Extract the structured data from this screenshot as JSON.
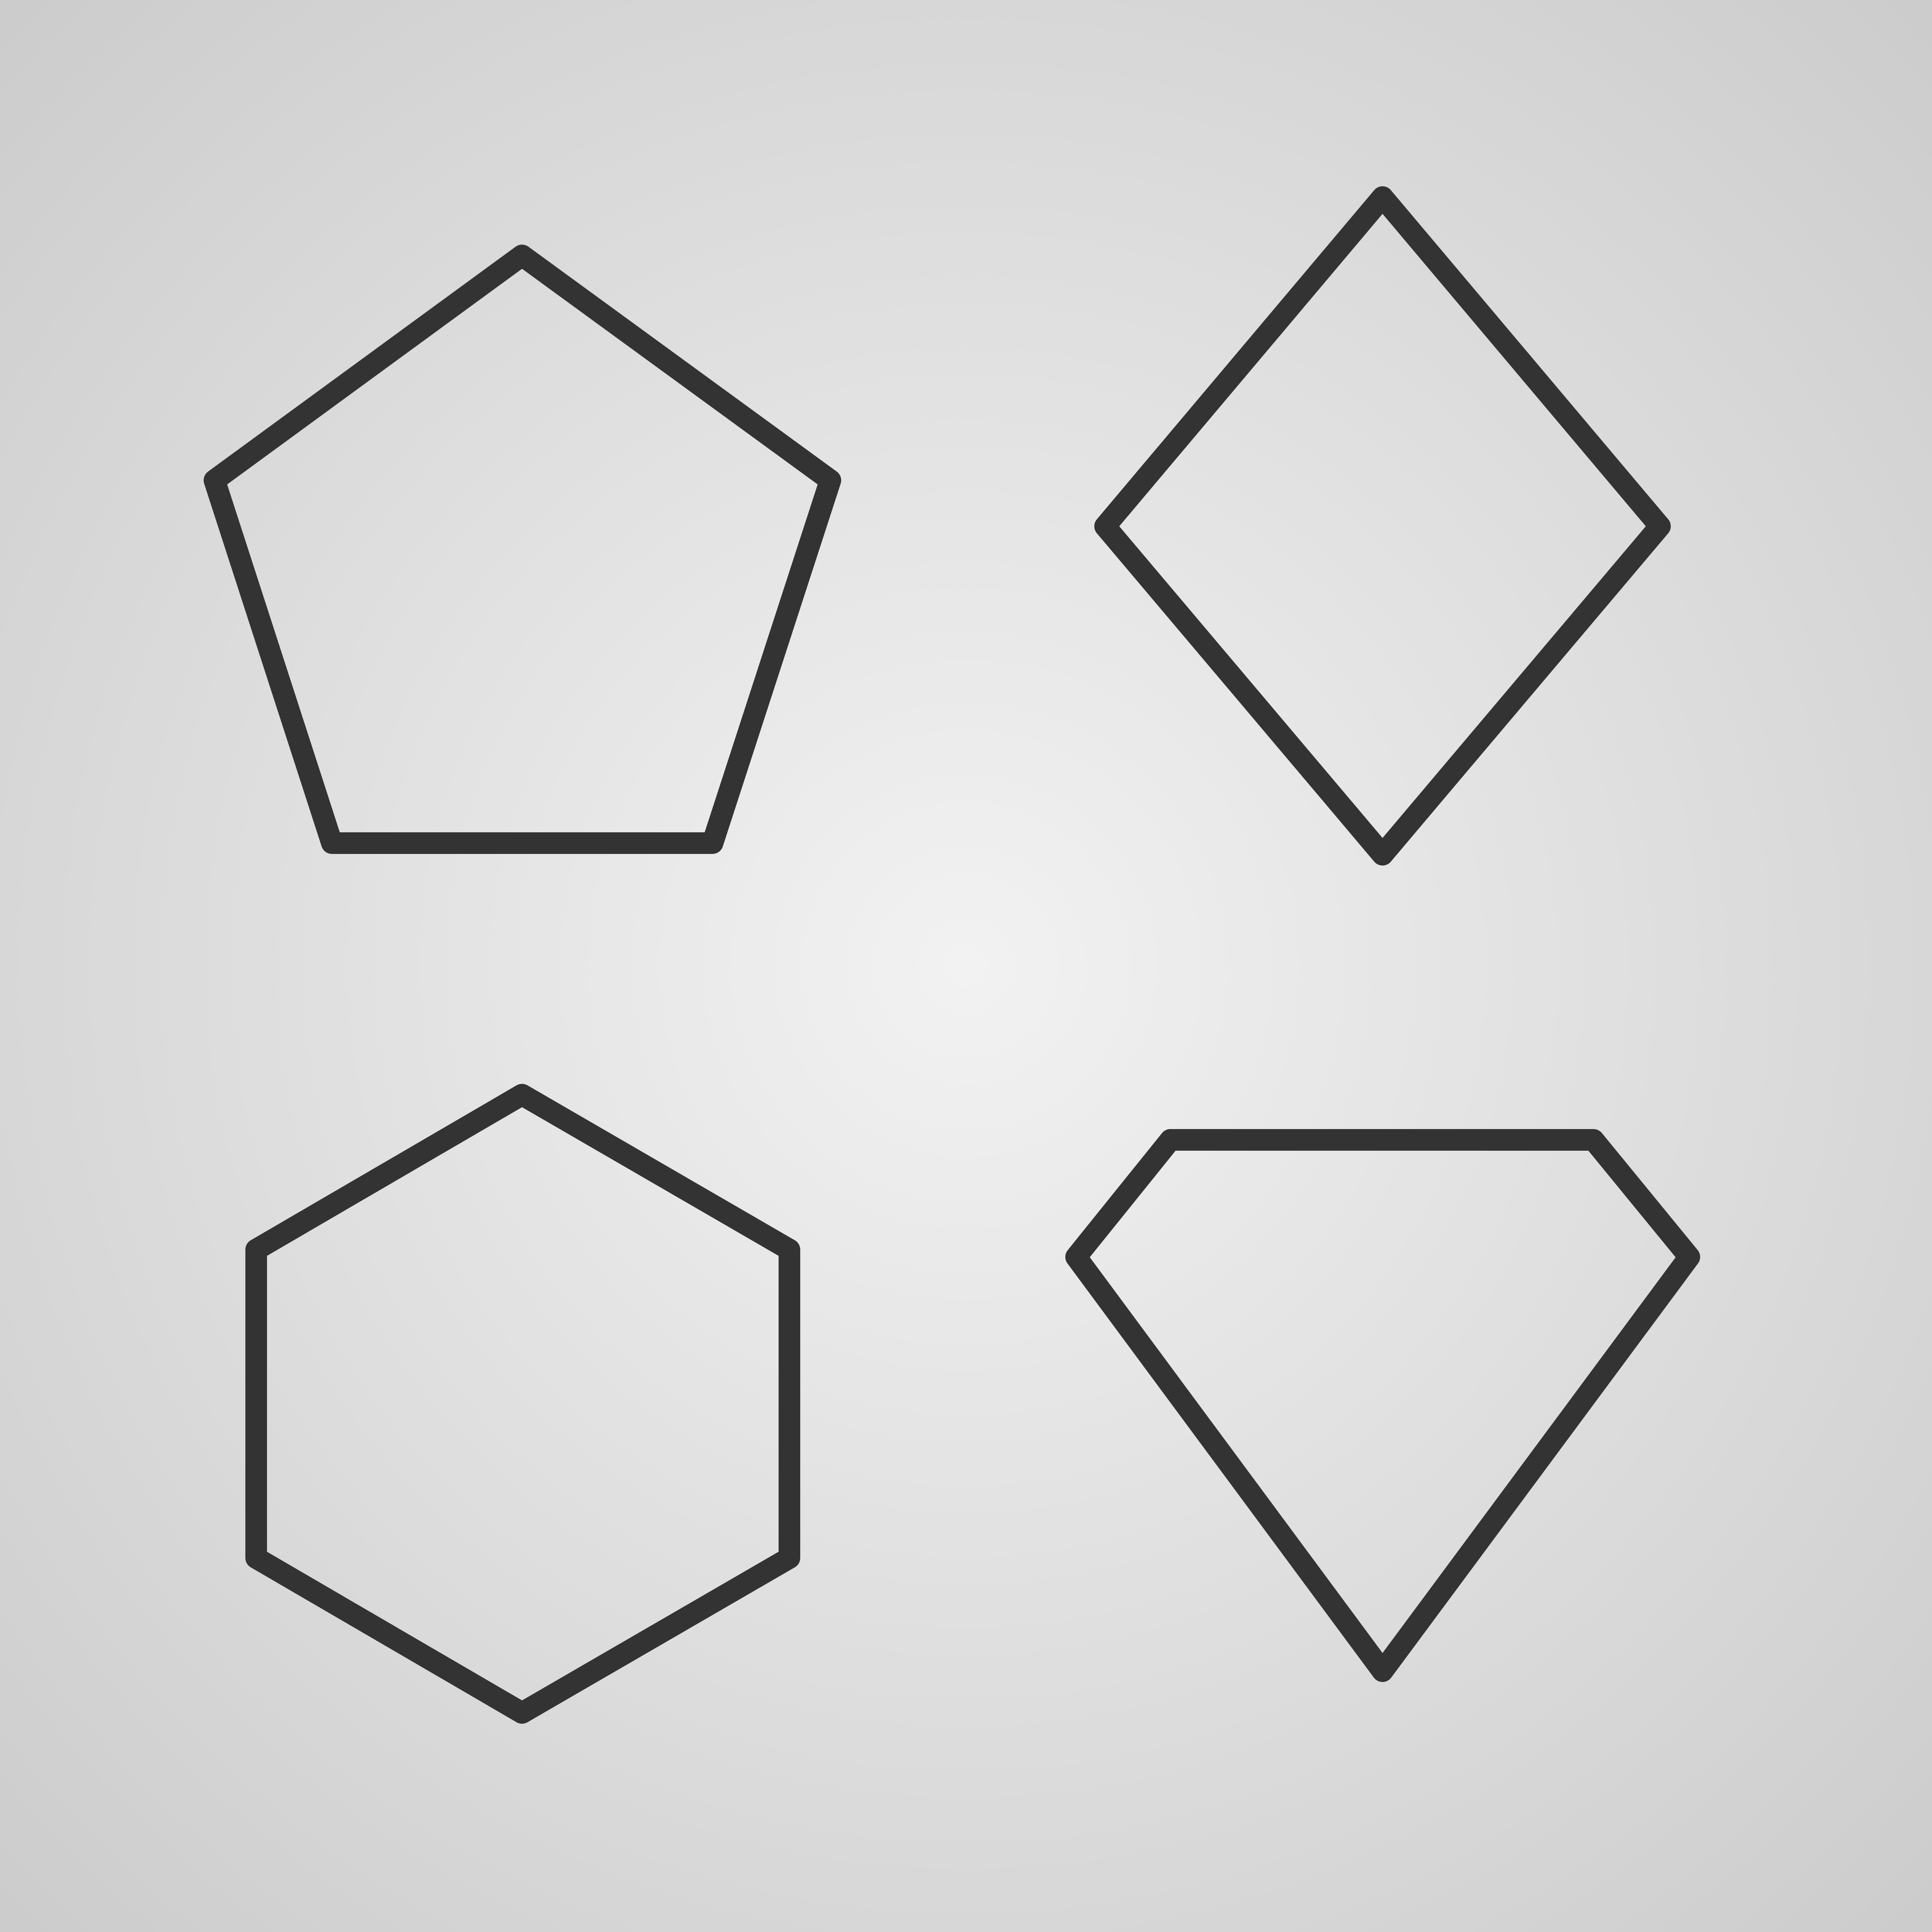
{
  "colors": {
    "background_center": "#f2f2f2",
    "background_edge": "#cccccc",
    "shape_stroke": "#333333"
  },
  "shapes": [
    {
      "name": "pentagon-icon",
      "kind": "regular-pentagon"
    },
    {
      "name": "diamond-icon",
      "kind": "rhombus"
    },
    {
      "name": "hexagon-icon",
      "kind": "regular-hexagon"
    },
    {
      "name": "gem-icon",
      "kind": "gem"
    }
  ]
}
